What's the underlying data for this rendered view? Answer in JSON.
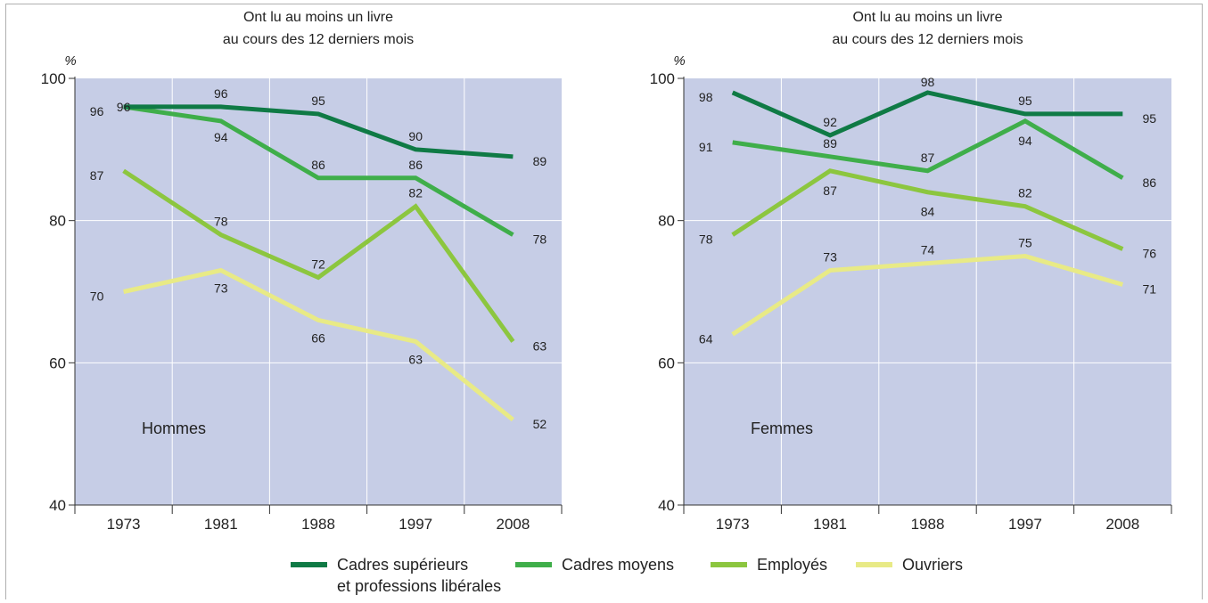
{
  "chart_data": [
    {
      "type": "line",
      "title": "Ont lu au moins un livre",
      "subtitle": "au cours des 12 derniers mois",
      "ylabel": "%",
      "panel_label": "Hommes",
      "categories": [
        "1973",
        "1981",
        "1988",
        "1997",
        "2008"
      ],
      "ylim": [
        40,
        100
      ],
      "yticks": [
        40,
        60,
        80,
        100
      ],
      "grid": true,
      "series": [
        {
          "name": "Cadres supérieurs et professions libérales",
          "values": [
            96,
            96,
            95,
            90,
            89
          ]
        },
        {
          "name": "Cadres moyens",
          "values": [
            96,
            94,
            86,
            86,
            78
          ]
        },
        {
          "name": "Employés",
          "values": [
            87,
            78,
            72,
            82,
            63
          ]
        },
        {
          "name": "Ouvriers",
          "values": [
            70,
            73,
            66,
            63,
            52
          ]
        }
      ]
    },
    {
      "type": "line",
      "title": "Ont lu au moins un livre",
      "subtitle": "au cours des 12 derniers mois",
      "ylabel": "%",
      "panel_label": "Femmes",
      "categories": [
        "1973",
        "1981",
        "1988",
        "1997",
        "2008"
      ],
      "ylim": [
        40,
        100
      ],
      "yticks": [
        40,
        60,
        80,
        100
      ],
      "grid": true,
      "series": [
        {
          "name": "Cadres supérieurs et professions libérales",
          "values": [
            98,
            92,
            98,
            95,
            95
          ]
        },
        {
          "name": "Cadres moyens",
          "values": [
            91,
            89,
            87,
            94,
            86
          ]
        },
        {
          "name": "Employés",
          "values": [
            78,
            87,
            84,
            82,
            76
          ]
        },
        {
          "name": "Ouvriers",
          "values": [
            64,
            73,
            74,
            75,
            71
          ]
        }
      ]
    }
  ],
  "legend": {
    "placement": "bottom",
    "items": [
      {
        "line1": "Cadres supérieurs",
        "line2": "et professions libérales",
        "color": "#0f7a45"
      },
      {
        "line1": "Cadres moyens",
        "line2": "",
        "color": "#3fae4a"
      },
      {
        "line1": "Employés",
        "line2": "",
        "color": "#8cc63f"
      },
      {
        "line1": "Ouvriers",
        "line2": "",
        "color": "#e8ea86"
      }
    ]
  },
  "colors": {
    "plot_background": "#c6cde6",
    "gridline": "#ffffff",
    "series": [
      "#0f7a45",
      "#3fae4a",
      "#8cc63f",
      "#e8ea86"
    ]
  }
}
